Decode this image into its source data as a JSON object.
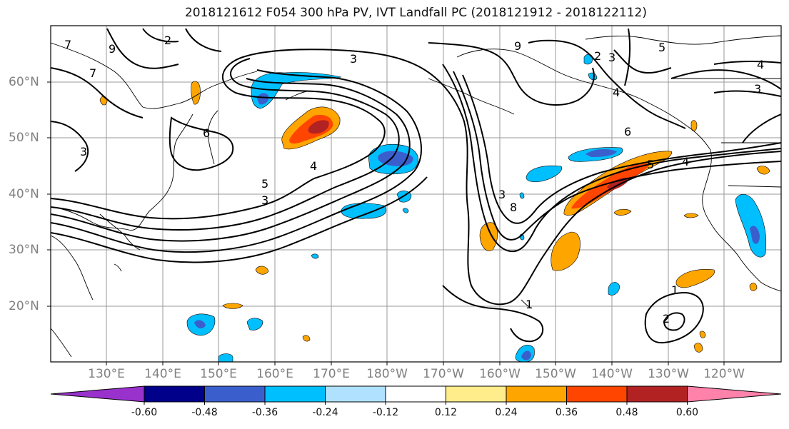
{
  "title": "2018121612 F054 300 hPa PV, IVT Landfall PC (2018121912 - 2018122112)",
  "lon_labels": [
    "130°E",
    "140°E",
    "150°E",
    "160°E",
    "170°E",
    "180°W",
    "170°W",
    "160°W",
    "150°W",
    "140°W",
    "130°W",
    "120°W"
  ],
  "lat_labels": [
    "60°N",
    "50°N",
    "40°N",
    "30°N",
    "20°N"
  ],
  "contour_labels": [
    "7",
    "9",
    "7",
    "2",
    "3",
    "9",
    "3",
    "5",
    "2",
    "3",
    "4",
    "4",
    "3",
    "6",
    "3",
    "6",
    "4",
    "5",
    "3",
    "8",
    "4",
    "5",
    "1",
    "2",
    "1"
  ],
  "colorbar": {
    "tick_labels": [
      "-0.60",
      "-0.48",
      "-0.36",
      "-0.24",
      "-0.12",
      "0.12",
      "0.24",
      "0.36",
      "0.48",
      "0.60"
    ],
    "colors": [
      "#9932CC",
      "#00008B",
      "#3A5FCD",
      "#00BFFF",
      "#B0E2FF",
      "#FFFFFF",
      "#FFEC8B",
      "#FFA500",
      "#FF4500",
      "#B22222",
      "#FF82AB"
    ]
  }
}
